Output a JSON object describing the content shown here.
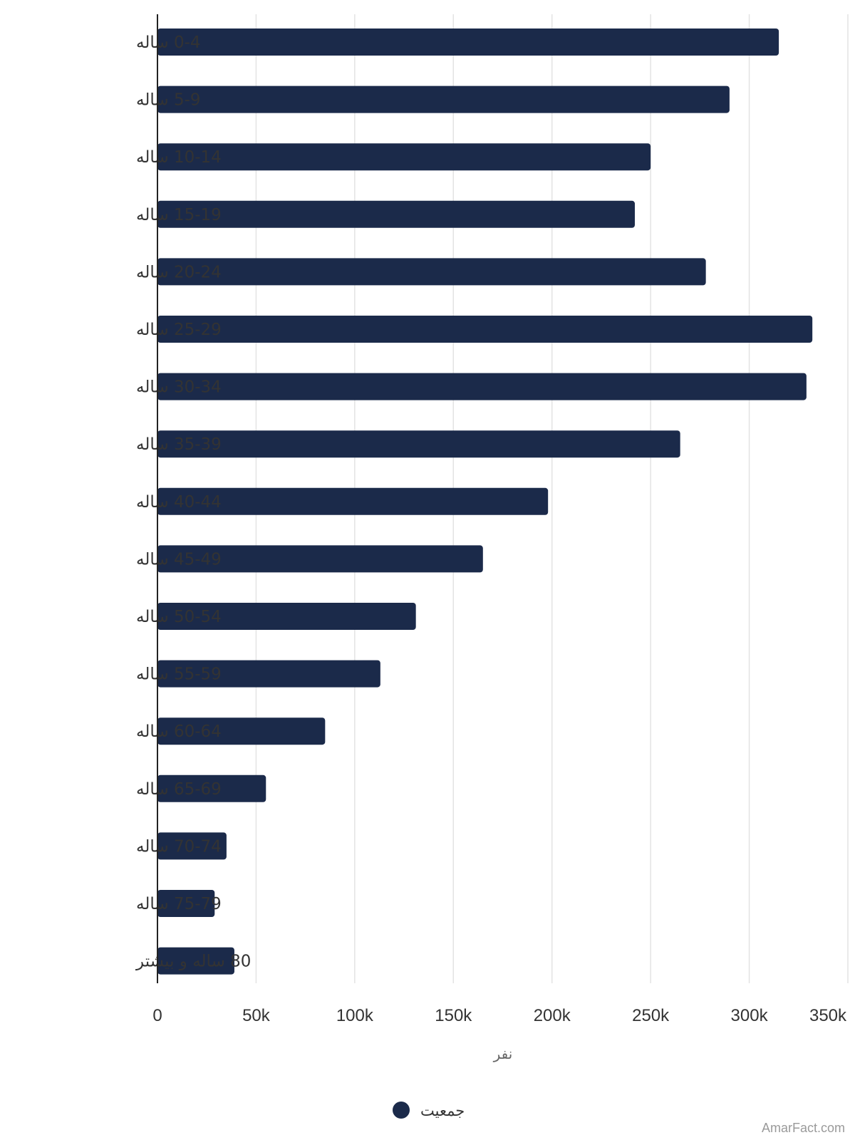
{
  "colors": {
    "bar": "#1b2a4a",
    "grid": "#e3e3e3",
    "axis": "#222222"
  },
  "chart_data": {
    "type": "bar",
    "orientation": "horizontal",
    "categories": [
      "0-4 ساله",
      "5-9 ساله",
      "10-14 ساله",
      "15-19 ساله",
      "20-24 ساله",
      "25-29 ساله",
      "30-34 ساله",
      "35-39 ساله",
      "40-44 ساله",
      "45-49 ساله",
      "50-54 ساله",
      "55-59 ساله",
      "60-64 ساله",
      "65-69 ساله",
      "70-74 ساله",
      "75-79 ساله",
      "80 ساله و بیشتر"
    ],
    "series": [
      {
        "name": "جمعیت",
        "values": [
          315000,
          290000,
          250000,
          242000,
          278000,
          332000,
          329000,
          265000,
          198000,
          165000,
          131000,
          113000,
          85000,
          55000,
          35000,
          29000,
          39000
        ]
      }
    ],
    "xlim": [
      0,
      350000
    ],
    "xticks": [
      0,
      50000,
      100000,
      150000,
      200000,
      250000,
      300000,
      350000
    ],
    "xtick_labels": [
      "0",
      "50k",
      "100k",
      "150k",
      "200k",
      "250k",
      "300k",
      "350k"
    ],
    "xlabel": "نفر",
    "ylabel": "",
    "grid": true,
    "legend_position": "bottom-center"
  },
  "watermark": "AmarFact.com"
}
